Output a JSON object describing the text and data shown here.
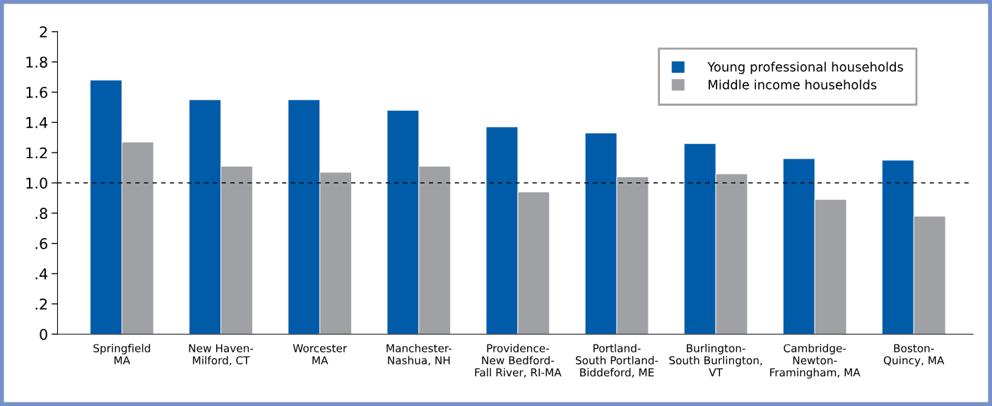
{
  "chart_data": {
    "type": "bar",
    "categories": [
      "Springfield\nMA",
      "New Haven-\nMilford, CT",
      "Worcester\nMA",
      "Manchester-\nNashua, NH",
      "Providence-\nNew Bedford-\nFall River, RI-MA",
      "Portland-\nSouth Portland-\nBiddeford, ME",
      "Burlington-\nSouth Burlington,\nVT",
      "Cambridge-\nNewton-\nFramingham, MA",
      "Boston-\nQuincy, MA"
    ],
    "series": [
      {
        "name": "Young professional households",
        "color": "#005ca9",
        "values": [
          1.68,
          1.55,
          1.55,
          1.48,
          1.37,
          1.33,
          1.26,
          1.16,
          1.15
        ]
      },
      {
        "name": "Middle income households",
        "color": "#a0a1a4",
        "values": [
          1.27,
          1.11,
          1.07,
          1.11,
          0.94,
          1.04,
          1.06,
          0.89,
          0.78
        ]
      }
    ],
    "ylim": [
      0,
      2
    ],
    "yticks": [
      0,
      {
        "value": 0.2,
        "label": ".2"
      },
      {
        "value": 0.4,
        "label": ".4"
      },
      {
        "value": 0.6,
        "label": ".6"
      },
      {
        "value": 0.8,
        "label": ".8"
      },
      {
        "value": 1.0,
        "label": "1.0"
      },
      1.2,
      1.4,
      1.6,
      1.8,
      2
    ],
    "ref_lines": [
      {
        "axis": "y",
        "value": 1.0,
        "color": "#000000",
        "line_style": "dashed"
      }
    ],
    "legend": "top right",
    "grid": false
  }
}
